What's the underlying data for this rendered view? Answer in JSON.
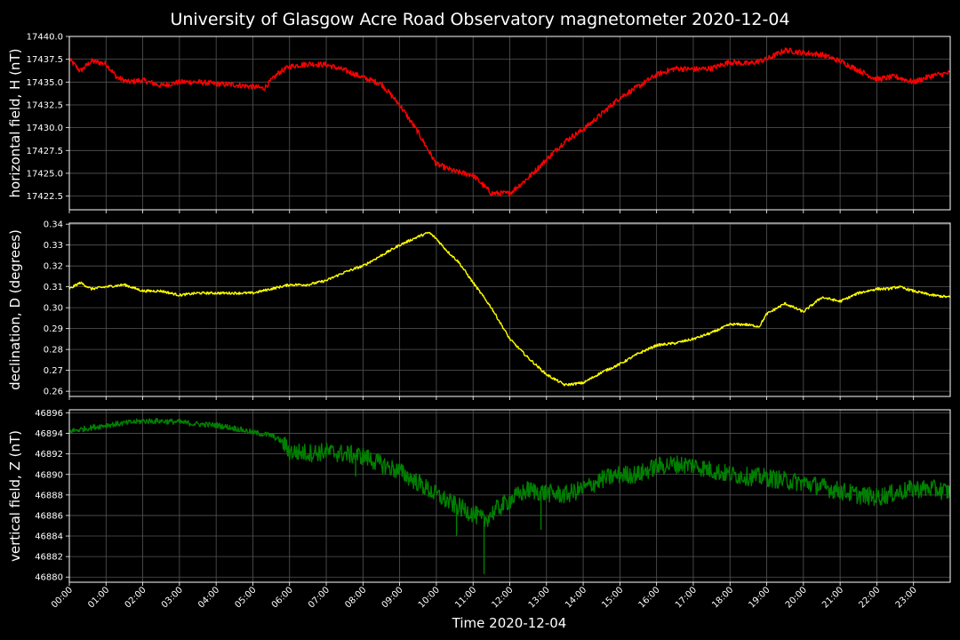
{
  "chart_data": {
    "type": "line",
    "title": "University of Glasgow Acre Road Observatory magnetometer 2020-12-04",
    "xlabel": "Time 2020-12-04",
    "x_ticks": [
      "00:00",
      "01:00",
      "02:00",
      "03:00",
      "04:00",
      "05:00",
      "06:00",
      "07:00",
      "08:00",
      "09:00",
      "10:00",
      "11:00",
      "12:00",
      "13:00",
      "14:00",
      "15:00",
      "16:00",
      "17:00",
      "18:00",
      "19:00",
      "20:00",
      "21:00",
      "22:00",
      "23:00"
    ],
    "xlim_hours": [
      0,
      24
    ],
    "grid": true,
    "panels": [
      {
        "ylabel": "horizontal field, H (nT)",
        "color": "#ff0000",
        "ylim": [
          17421,
          17440
        ],
        "y_ticks": [
          "17440.0",
          "17437.5",
          "17435.0",
          "17432.5",
          "17430.0",
          "17427.5",
          "17425.0",
          "17422.5"
        ],
        "noise": 0.3,
        "x_hours": [
          0,
          0.3,
          0.6,
          1.0,
          1.3,
          1.6,
          2.0,
          2.5,
          3.0,
          3.5,
          4.0,
          4.5,
          5.0,
          5.3,
          5.7,
          6.0,
          6.5,
          7.0,
          7.5,
          8.0,
          8.5,
          9.0,
          9.5,
          10.0,
          10.5,
          11.0,
          11.5,
          12.0,
          12.5,
          13.0,
          13.5,
          14.0,
          14.5,
          15.0,
          15.5,
          16.0,
          16.5,
          17.0,
          17.5,
          18.0,
          18.5,
          19.0,
          19.5,
          20.0,
          20.5,
          21.0,
          21.5,
          22.0,
          22.5,
          23.0,
          23.5,
          24.0
        ],
        "values": [
          17437.5,
          17436.2,
          17437.3,
          17437.0,
          17435.5,
          17435.0,
          17435.2,
          17434.6,
          17435.0,
          17435.0,
          17434.8,
          17434.7,
          17434.5,
          17434.3,
          17436.0,
          17436.7,
          17437.0,
          17436.9,
          17436.3,
          17435.5,
          17434.8,
          17432.5,
          17429.5,
          17426.0,
          17425.2,
          17424.8,
          17422.8,
          17422.8,
          17424.5,
          17426.5,
          17428.5,
          17429.8,
          17431.5,
          17433.3,
          17434.5,
          17435.8,
          17436.5,
          17436.4,
          17436.5,
          17437.2,
          17437.0,
          17437.5,
          17438.5,
          17438.2,
          17438.0,
          17437.3,
          17436.3,
          17435.3,
          17435.6,
          17435.0,
          17435.7,
          17436.0
        ]
      },
      {
        "ylabel": "declination, D (degrees)",
        "color": "#ffff00",
        "ylim": [
          0.2575,
          0.3405
        ],
        "y_ticks": [
          "0.34",
          "0.33",
          "0.32",
          "0.31",
          "0.30",
          "0.29",
          "0.28",
          "0.27",
          "0.26"
        ],
        "noise": 0.0006,
        "x_hours": [
          0,
          0.3,
          0.6,
          1.0,
          1.5,
          2.0,
          2.5,
          3.0,
          3.5,
          4.0,
          4.5,
          5.0,
          5.5,
          6.0,
          6.5,
          7.0,
          7.5,
          8.0,
          8.5,
          9.0,
          9.5,
          9.8,
          10.0,
          10.3,
          10.6,
          11.0,
          11.5,
          12.0,
          12.5,
          13.0,
          13.5,
          14.0,
          14.5,
          15.0,
          15.5,
          16.0,
          16.5,
          17.0,
          17.5,
          18.0,
          18.4,
          18.8,
          19.0,
          19.5,
          20.0,
          20.5,
          21.0,
          21.5,
          22.0,
          22.3,
          22.6,
          23.0,
          23.5,
          24.0
        ],
        "values": [
          0.309,
          0.312,
          0.309,
          0.31,
          0.311,
          0.308,
          0.308,
          0.306,
          0.307,
          0.307,
          0.307,
          0.307,
          0.309,
          0.311,
          0.311,
          0.313,
          0.317,
          0.32,
          0.325,
          0.33,
          0.334,
          0.336,
          0.333,
          0.327,
          0.322,
          0.312,
          0.3,
          0.285,
          0.276,
          0.268,
          0.263,
          0.264,
          0.269,
          0.273,
          0.278,
          0.282,
          0.283,
          0.285,
          0.288,
          0.292,
          0.292,
          0.291,
          0.297,
          0.302,
          0.298,
          0.305,
          0.303,
          0.307,
          0.309,
          0.309,
          0.31,
          0.308,
          0.306,
          0.305
        ]
      },
      {
        "ylabel": "vertical field, Z (nT)",
        "color": "#008000",
        "ylim": [
          46879.5,
          46896.3
        ],
        "y_ticks": [
          "46896",
          "46894",
          "46892",
          "46890",
          "46888",
          "46886",
          "46884",
          "46882",
          "46880"
        ],
        "noise": 0.9,
        "x_hours": [
          0,
          0.5,
          1.0,
          1.5,
          2.0,
          2.5,
          3.0,
          3.5,
          4.0,
          4.5,
          5.0,
          5.5,
          5.8,
          6.0,
          6.5,
          7.0,
          7.5,
          8.0,
          8.5,
          9.0,
          9.5,
          10.0,
          10.5,
          11.0,
          11.3,
          11.6,
          12.0,
          12.5,
          13.0,
          13.5,
          14.0,
          14.5,
          15.0,
          15.5,
          16.0,
          16.5,
          17.0,
          17.5,
          18.0,
          18.5,
          19.0,
          19.5,
          20.0,
          20.5,
          21.0,
          21.5,
          22.0,
          22.5,
          23.0,
          23.5,
          24.0
        ],
        "values": [
          46894.2,
          46894.5,
          46894.8,
          46895.0,
          46895.2,
          46895.2,
          46895.1,
          46894.9,
          46894.8,
          46894.5,
          46894.1,
          46893.8,
          46893.2,
          46892.2,
          46892.1,
          46892.2,
          46892.0,
          46891.8,
          46891.0,
          46890.3,
          46889.2,
          46888.0,
          46887.0,
          46886.2,
          46885.5,
          46886.5,
          46887.5,
          46888.5,
          46888.2,
          46888.0,
          46888.6,
          46889.5,
          46890.0,
          46890.0,
          46890.8,
          46891.0,
          46890.9,
          46890.4,
          46890.0,
          46889.8,
          46889.7,
          46889.4,
          46889.2,
          46888.8,
          46888.4,
          46888.0,
          46887.8,
          46888.2,
          46888.6,
          46888.6,
          46888.3
        ]
      }
    ]
  }
}
